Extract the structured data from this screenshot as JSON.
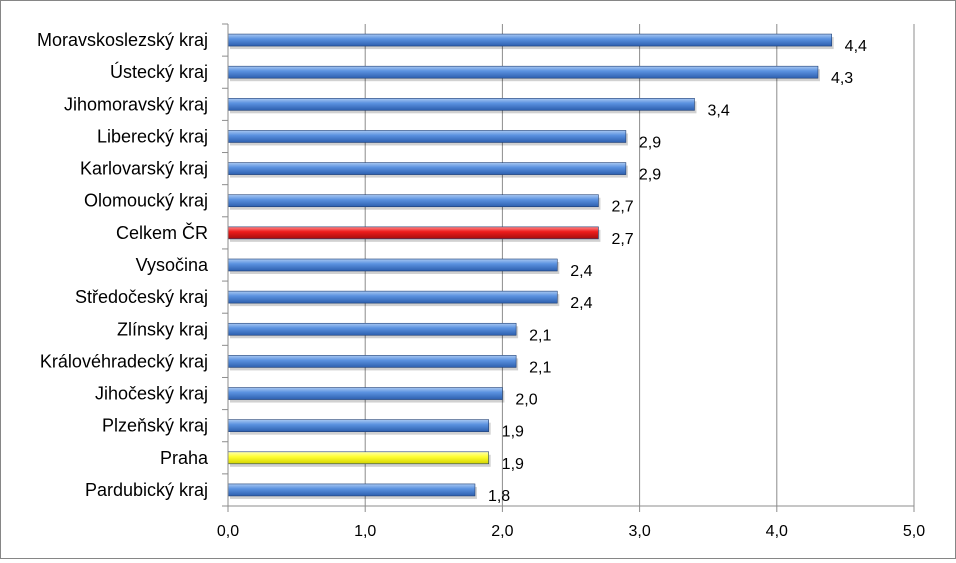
{
  "chart_data": {
    "type": "bar",
    "orientation": "horizontal",
    "title": "",
    "xlabel": "",
    "ylabel": "",
    "xlim": [
      0,
      5
    ],
    "x_ticks": [
      "0,0",
      "1,0",
      "2,0",
      "3,0",
      "4,0",
      "5,0"
    ],
    "grid": "vertical major gridlines",
    "legend": "none",
    "categories": [
      "Moravskoslezský kraj",
      "Ústecký kraj",
      "Jihomoravský kraj",
      "Liberecký kraj",
      "Karlovarský kraj",
      "Olomoucký kraj",
      "Celkem ČR",
      "Vysočina",
      "Středočeský kraj",
      "Zlínsky kraj",
      "Královéhradecký kraj",
      "Jihočeský kraj",
      "Plzeňský kraj",
      "Praha",
      "Pardubický kraj"
    ],
    "values": [
      4.4,
      4.3,
      3.4,
      2.9,
      2.9,
      2.7,
      2.7,
      2.4,
      2.4,
      2.1,
      2.1,
      2.0,
      1.9,
      1.9,
      1.8
    ],
    "value_labels": [
      "4,4",
      "4,3",
      "3,4",
      "2,9",
      "2,9",
      "2,7",
      "2,7",
      "2,4",
      "2,4",
      "2,1",
      "2,1",
      "2,0",
      "1,9",
      "1,9",
      "1,8"
    ],
    "bar_colors": [
      "#4f86d6",
      "#4f86d6",
      "#4f86d6",
      "#4f86d6",
      "#4f86d6",
      "#4f86d6",
      "#ee1c1c",
      "#4f86d6",
      "#4f86d6",
      "#4f86d6",
      "#4f86d6",
      "#4f86d6",
      "#4f86d6",
      "#ffff33",
      "#4f86d6"
    ],
    "colors": {
      "default_bar": "#4f86d6",
      "highlight_total": "#ee1c1c",
      "highlight_praha": "#ffff33",
      "gridline": "#8c8c8c",
      "axis": "#8c8c8c"
    }
  }
}
